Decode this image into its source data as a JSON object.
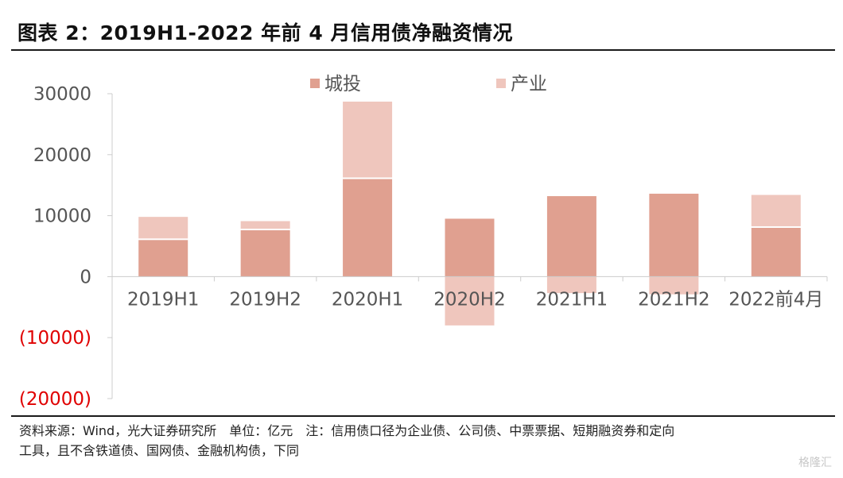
{
  "title": "图表 2：2019H1-2022 年前 4 月信用债净融资情况",
  "source_note_line1": "资料来源：Wind，光大证券研究所　单位：亿元　注：信用债口径为企业债、公司债、中票票据、短期融资券和定向",
  "source_note_line2": "工具，且不含铁道债、国网债、金融机构债，下同",
  "watermark": "格隆汇",
  "colors": {
    "chengtou": "#e0a090",
    "chanye": "#efc6bd",
    "negative_label": "#e00000",
    "axis": "#cccccc"
  },
  "chart_data": {
    "type": "bar",
    "stacked": true,
    "categories": [
      "2019H1",
      "2019H2",
      "2020H1",
      "2020H2",
      "2021H1",
      "2021H2",
      "2022前4月"
    ],
    "series": [
      {
        "name": "城投",
        "values": [
          6000,
          7600,
          16000,
          9500,
          13200,
          13600,
          8000
        ]
      },
      {
        "name": "产业",
        "values": [
          3800,
          1500,
          12700,
          -8000,
          -2700,
          -2900,
          5400
        ]
      }
    ],
    "yticks": [
      30000,
      20000,
      10000,
      0,
      -10000,
      -20000
    ],
    "ytick_labels": [
      "30000",
      "20000",
      "10000",
      "0",
      "(10000)",
      "(20000)"
    ],
    "ylim": [
      -20000,
      30000
    ],
    "legend_position": "top",
    "grid": false
  }
}
